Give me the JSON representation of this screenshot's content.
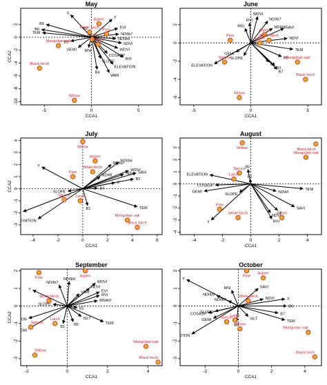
{
  "colors": {
    "species_point_fill": "#f5a623",
    "species_point_stroke": "#c0392b",
    "species_label": "#d0202a",
    "arrow": "#000000"
  },
  "chart_data": [
    {
      "type": "scatter",
      "title": "May",
      "xlabel": "CCA1",
      "ylabel": "CCA2",
      "xlim": [
        -7.5,
        7.5
      ],
      "ylim": [
        -10.5,
        4.5
      ],
      "xticks": [
        -5,
        0,
        5
      ],
      "yticks": [
        -10,
        -8,
        -6,
        -4,
        -2,
        0,
        2
      ],
      "species": [
        {
          "label": "Aspen",
          "x": 0.8,
          "y": 2.1
        },
        {
          "label": "White birch",
          "x": -0.2,
          "y": 0.8
        },
        {
          "label": "Pine",
          "x": 1.6,
          "y": 0.5
        },
        {
          "label": "Larch",
          "x": 0.1,
          "y": -0.3
        },
        {
          "label": "Spruce",
          "x": 0.7,
          "y": -1.1
        },
        {
          "label": "Mongolian oak",
          "x": -3.5,
          "y": -1.3
        },
        {
          "label": "Black birch",
          "x": -5.5,
          "y": -4.8
        },
        {
          "label": "Willow",
          "x": -1.8,
          "y": -9.8
        }
      ],
      "vectors": [
        {
          "label": "X",
          "x": -2.2,
          "y": 3.5
        },
        {
          "label": "Y",
          "x": 2.2,
          "y": 2.8
        },
        {
          "label": "B5",
          "x": -4.8,
          "y": 2.0
        },
        {
          "label": "B6",
          "x": -5.3,
          "y": 1.2
        },
        {
          "label": "TEM",
          "x": -5.2,
          "y": 0.7
        },
        {
          "label": "B2",
          "x": -0.3,
          "y": 1.0
        },
        {
          "label": "B1",
          "x": -2.2,
          "y": -0.6
        },
        {
          "label": "GEMI",
          "x": -1.4,
          "y": -1.6
        },
        {
          "label": "MSI",
          "x": -0.3,
          "y": -1.6
        },
        {
          "label": "EVI",
          "x": 2.8,
          "y": 1.4
        },
        {
          "label": "NDIIb7",
          "x": 2.9,
          "y": 0.5
        },
        {
          "label": "NDIIb6",
          "x": 2.6,
          "y": -0.2
        },
        {
          "label": "NDVI",
          "x": 3.2,
          "y": -0.9
        },
        {
          "label": "WDVI",
          "x": 2.8,
          "y": -1.7
        },
        {
          "label": "COSASP",
          "x": 1.7,
          "y": -2.5
        },
        {
          "label": "SLOPE",
          "x": 1.0,
          "y": -3.3
        },
        {
          "label": "RVI",
          "x": 3.4,
          "y": -3.1
        },
        {
          "label": "B4",
          "x": 0.6,
          "y": -5.0
        },
        {
          "label": "ELEVATION",
          "x": 2.3,
          "y": -4.2
        },
        {
          "label": "VARI",
          "x": 1.9,
          "y": -5.5
        }
      ]
    },
    {
      "type": "scatter",
      "title": "June",
      "xlabel": "CCA1",
      "ylabel": "",
      "xlim": [
        -6.2,
        6.2
      ],
      "ylim": [
        -6.8,
        3.8
      ],
      "xticks": [
        -5,
        0,
        5
      ],
      "yticks": [
        -6,
        -4,
        -2,
        0,
        2
      ],
      "species": [
        {
          "label": "Aspen",
          "x": 1.2,
          "y": 0.9
        },
        {
          "label": "White birch",
          "x": 1.6,
          "y": 0.3
        },
        {
          "label": "Pine",
          "x": -1.8,
          "y": 0.3
        },
        {
          "label": "Larch",
          "x": 0.8,
          "y": 0.0
        },
        {
          "label": "Spruce",
          "x": -2.3,
          "y": -2.1
        },
        {
          "label": "Mongolian oak",
          "x": 4.1,
          "y": -2.1
        },
        {
          "label": "Black birch",
          "x": 4.8,
          "y": -4.0
        },
        {
          "label": "Willow",
          "x": -1.0,
          "y": -6.0
        }
      ],
      "vectors": [
        {
          "label": "WDVI",
          "x": 0.6,
          "y": 2.9
        },
        {
          "label": "NDIIb7",
          "x": 1.5,
          "y": 2.4
        },
        {
          "label": "RVI",
          "x": -0.1,
          "y": 2.2
        },
        {
          "label": "NDIIb6",
          "x": 1.9,
          "y": 1.6
        },
        {
          "label": "MSI",
          "x": -0.5,
          "y": 1.6
        },
        {
          "label": "SAVI",
          "x": 2.9,
          "y": 1.6
        },
        {
          "label": "NDVI",
          "x": 3.2,
          "y": 0.5
        },
        {
          "label": "TEM",
          "x": 3.7,
          "y": -0.7
        },
        {
          "label": "GEMI",
          "x": -1.3,
          "y": -1.0
        },
        {
          "label": "SLOPE",
          "x": -0.6,
          "y": -1.4
        },
        {
          "label": "B5",
          "x": 2.7,
          "y": -1.5
        },
        {
          "label": "ELEVATION",
          "x": -3.2,
          "y": -2.3
        },
        {
          "label": "B1",
          "x": 1.6,
          "y": -2.1
        },
        {
          "label": "B3",
          "x": 2.1,
          "y": -2.5
        },
        {
          "label": "B7",
          "x": 2.3,
          "y": -2.9
        }
      ]
    },
    {
      "type": "scatter",
      "title": "July",
      "xlabel": "CCA1",
      "ylabel": "CCA2",
      "xlim": [
        -5.0,
        6.4
      ],
      "ylim": [
        -3.8,
        4.2
      ],
      "xticks": [
        -4,
        -2,
        0,
        2,
        4,
        6
      ],
      "yticks": [
        -3,
        -2,
        -1,
        0,
        1,
        2,
        3,
        4
      ],
      "species": [
        {
          "label": "Willow",
          "x": 0.0,
          "y": 3.9
        },
        {
          "label": "Aspen",
          "x": 1.0,
          "y": 2.3
        },
        {
          "label": "White birch",
          "x": 0.8,
          "y": 1.4
        },
        {
          "label": "Pine",
          "x": -0.8,
          "y": 1.0
        },
        {
          "label": "Larch",
          "x": -0.2,
          "y": -1.0
        },
        {
          "label": "Spruce",
          "x": -1.5,
          "y": -0.9
        },
        {
          "label": "Mongolian oak",
          "x": 3.6,
          "y": -2.6
        },
        {
          "label": "Black birch",
          "x": 4.4,
          "y": -3.2
        }
      ],
      "vectors": [
        {
          "label": "NDIIb6",
          "x": 2.9,
          "y": 2.2
        },
        {
          "label": "NDIIb7",
          "x": 2.3,
          "y": 2.0
        },
        {
          "label": "WDVI",
          "x": 3.7,
          "y": 1.5
        },
        {
          "label": "Y",
          "x": -3.3,
          "y": 1.8
        },
        {
          "label": "NDVI",
          "x": 3.3,
          "y": 1.2
        },
        {
          "label": "SAVI",
          "x": 4.3,
          "y": 1.3
        },
        {
          "label": "NDWI",
          "x": 1.4,
          "y": 1.0
        },
        {
          "label": "B2",
          "x": 4.1,
          "y": 0.8
        },
        {
          "label": "X",
          "x": 2.6,
          "y": 0.5
        },
        {
          "label": "B4",
          "x": 1.2,
          "y": 0.05
        },
        {
          "label": "SLOPE",
          "x": -1.2,
          "y": -0.2
        },
        {
          "label": "B1",
          "x": 0.4,
          "y": -1.4
        },
        {
          "label": "GEMI",
          "x": -4.8,
          "y": -1.9
        },
        {
          "label": "ELEVATION",
          "x": -3.6,
          "y": -2.5
        },
        {
          "label": "TEM",
          "x": 4.4,
          "y": -1.5
        }
      ]
    },
    {
      "type": "scatter",
      "title": "August",
      "xlabel": "CCA1",
      "ylabel": "",
      "xlim": [
        -5.0,
        5.0
      ],
      "ylim": [
        -4.2,
        3.8
      ],
      "xticks": [
        -4,
        -2,
        0,
        2,
        4
      ],
      "yticks": [
        -4,
        -3,
        -2,
        -1,
        0,
        1,
        2,
        3
      ],
      "species": [
        {
          "label": "Willow",
          "x": -0.6,
          "y": 3.4
        },
        {
          "label": "Black birch",
          "x": 4.6,
          "y": 3.3
        },
        {
          "label": "Mongolian oak",
          "x": 3.9,
          "y": 2.2
        },
        {
          "label": "Spruce",
          "x": -0.8,
          "y": 0.9
        },
        {
          "label": "Larch",
          "x": -1.2,
          "y": 0.4
        },
        {
          "label": "Pine",
          "x": -2.2,
          "y": -2.1
        },
        {
          "label": "White birch",
          "x": -0.9,
          "y": -2.8
        },
        {
          "label": "Aspen",
          "x": 2.2,
          "y": -2.8
        }
      ],
      "vectors": [
        {
          "label": "B5",
          "x": -0.2,
          "y": 1.2
        },
        {
          "label": "B1",
          "x": -0.05,
          "y": 0.4
        },
        {
          "label": "ELEVATION",
          "x": -2.9,
          "y": 0.75
        },
        {
          "label": "COSASP",
          "x": -2.5,
          "y": -0.1
        },
        {
          "label": "SLOPE",
          "x": -0.8,
          "y": -0.7
        },
        {
          "label": "GEMI",
          "x": -3.3,
          "y": -0.6
        },
        {
          "label": "NDWI",
          "x": 1.8,
          "y": -0.6
        },
        {
          "label": "TEM",
          "x": 3.7,
          "y": -0.4
        },
        {
          "label": "SAVI",
          "x": 3.1,
          "y": -1.9
        },
        {
          "label": "X",
          "x": 1.9,
          "y": -2.2
        },
        {
          "label": "NDVI",
          "x": 1.4,
          "y": -2.4
        },
        {
          "label": "RVI",
          "x": 1.5,
          "y": -2.9
        },
        {
          "label": "Y",
          "x": -2.8,
          "y": -3.0
        }
      ]
    },
    {
      "type": "scatter",
      "title": "September",
      "xlabel": "CCA1",
      "ylabel": "CCA2",
      "xlim": [
        -2.3,
        4.7
      ],
      "ylim": [
        -3.4,
        2.1
      ],
      "xticks": [
        -2,
        0,
        2,
        4
      ],
      "yticks": [
        -3,
        -2,
        -1,
        0,
        1,
        2
      ],
      "species": [
        {
          "label": "Pine",
          "x": -1.4,
          "y": 1.9
        },
        {
          "label": "Aspen",
          "x": 0.9,
          "y": 2.0
        },
        {
          "label": "White birch",
          "x": -0.9,
          "y": 0.3
        },
        {
          "label": "Larch",
          "x": -0.6,
          "y": -1.0
        },
        {
          "label": "Spruce",
          "x": -1.8,
          "y": -1.2
        },
        {
          "label": "Willow",
          "x": -1.6,
          "y": -2.8
        },
        {
          "label": "Mongolian oak",
          "x": 3.9,
          "y": -2.3
        },
        {
          "label": "Black birch",
          "x": 4.5,
          "y": -3.2
        }
      ],
      "vectors": [
        {
          "label": "NDIIb6",
          "x": 0.1,
          "y": 1.4
        },
        {
          "label": "WDVI",
          "x": 1.4,
          "y": 1.3
        },
        {
          "label": "NDIIb7",
          "x": -0.4,
          "y": 1.2
        },
        {
          "label": "NDVI",
          "x": 1.1,
          "y": 1.0
        },
        {
          "label": "EVI",
          "x": 1.6,
          "y": 0.8
        },
        {
          "label": "VARI",
          "x": 0.6,
          "y": 0.7
        },
        {
          "label": "RVI",
          "x": 1.6,
          "y": 0.6
        },
        {
          "label": "MSAVI",
          "x": 1.5,
          "y": 0.3
        },
        {
          "label": "Y",
          "x": -1.7,
          "y": 0.9
        },
        {
          "label": "SLOPE",
          "x": -0.7,
          "y": 0.1
        },
        {
          "label": "B2",
          "x": 0.5,
          "y": -0.1
        },
        {
          "label": "ELEVATION",
          "x": -1.9,
          "y": -0.7
        },
        {
          "label": "SILT",
          "x": 0.7,
          "y": -0.6
        },
        {
          "label": "B1",
          "x": -0.2,
          "y": -1.0
        },
        {
          "label": "B5",
          "x": 0.3,
          "y": -0.9
        },
        {
          "label": "TEM",
          "x": 1.8,
          "y": -0.9
        },
        {
          "label": "GEMI",
          "x": -1.9,
          "y": -1.3
        }
      ]
    },
    {
      "type": "scatter",
      "title": "October",
      "xlabel": "CCA1",
      "ylabel": "",
      "xlim": [
        -3.5,
        5.0
      ],
      "ylim": [
        -3.4,
        2.1
      ],
      "xticks": [
        -2,
        0,
        2,
        4
      ],
      "yticks": [
        -3,
        -2,
        -1,
        0,
        1,
        2
      ],
      "species": [
        {
          "label": "Pine",
          "x": 0.5,
          "y": 2.0
        },
        {
          "label": "Aspen",
          "x": 1.5,
          "y": 1.6
        },
        {
          "label": "White birch",
          "x": 0.6,
          "y": 0.3
        },
        {
          "label": "Spruce",
          "x": -0.7,
          "y": -0.9
        },
        {
          "label": "Larch",
          "x": -0.2,
          "y": -0.8
        },
        {
          "label": "Willow",
          "x": 0.1,
          "y": -1.3
        },
        {
          "label": "Mongolian oak",
          "x": 4.2,
          "y": -1.5
        },
        {
          "label": "Black birch",
          "x": 4.6,
          "y": -2.9
        }
      ],
      "vectors": [
        {
          "label": "Y",
          "x": -3.1,
          "y": 1.5
        },
        {
          "label": "MSI",
          "x": -0.4,
          "y": 0.9
        },
        {
          "label": "SAVI",
          "x": 1.2,
          "y": 1.0
        },
        {
          "label": "NDIIb6",
          "x": -1.3,
          "y": 0.6
        },
        {
          "label": "NDIIb7",
          "x": -0.6,
          "y": 0.3
        },
        {
          "label": "NDVI",
          "x": 1.5,
          "y": 0.4
        },
        {
          "label": "X",
          "x": 2.8,
          "y": 0.4
        },
        {
          "label": "B6",
          "x": 2.9,
          "y": 0.0
        },
        {
          "label": "B7",
          "x": 2.4,
          "y": -0.4
        },
        {
          "label": "SLOPE",
          "x": -1.4,
          "y": -0.3
        },
        {
          "label": "COSASP",
          "x": -1.8,
          "y": -0.4
        },
        {
          "label": "GEMI",
          "x": -1.5,
          "y": -0.7
        },
        {
          "label": "SILT",
          "x": 0.6,
          "y": -0.6
        },
        {
          "label": "TEM",
          "x": 2.8,
          "y": -0.8
        },
        {
          "label": "B3",
          "x": -0.1,
          "y": -0.9
        },
        {
          "label": "ELEVATION",
          "x": -2.8,
          "y": -1.6
        }
      ]
    }
  ]
}
